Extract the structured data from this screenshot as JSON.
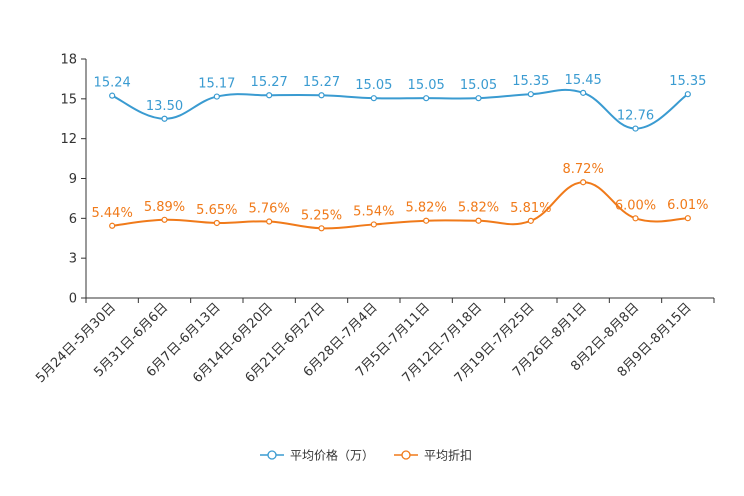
{
  "chart_data": {
    "type": "line",
    "title": "",
    "xlabel": "",
    "ylabel": "",
    "ylim": [
      0,
      18
    ],
    "yticks": [
      0,
      3,
      6,
      9,
      12,
      15,
      18
    ],
    "categories": [
      "5月24日-5月30日",
      "5月31日-6月6日",
      "6月7日-6月13日",
      "6月14日-6月20日",
      "6月21日-6月27日",
      "6月28日-7月4日",
      "7月5日-7月11日",
      "7月12日-7月18日",
      "7月19日-7月25日",
      "7月26日-8月1日",
      "8月2日-8月8日",
      "8月9日-8月15日"
    ],
    "series": [
      {
        "name": "平均价格（万）",
        "color": "#3a9bd1",
        "values": [
          15.24,
          13.5,
          15.17,
          15.27,
          15.27,
          15.05,
          15.05,
          15.05,
          15.35,
          15.45,
          12.76,
          15.35
        ],
        "labels": [
          "15.24",
          "13.50",
          "15.17",
          "15.27",
          "15.27",
          "15.05",
          "15.05",
          "15.05",
          "15.35",
          "15.45",
          "12.76",
          "15.35"
        ]
      },
      {
        "name": "平均折扣",
        "color": "#f07a1a",
        "values": [
          5.44,
          5.89,
          5.65,
          5.76,
          5.25,
          5.54,
          5.82,
          5.82,
          5.81,
          8.72,
          6.0,
          6.01
        ],
        "labels": [
          "5.44%",
          "5.89%",
          "5.65%",
          "5.76%",
          "5.25%",
          "5.54%",
          "5.82%",
          "5.82%",
          "5.81%",
          "8.72%",
          "6.00%",
          "6.01%"
        ]
      }
    ],
    "grid": false,
    "legend": "bottom-center"
  }
}
